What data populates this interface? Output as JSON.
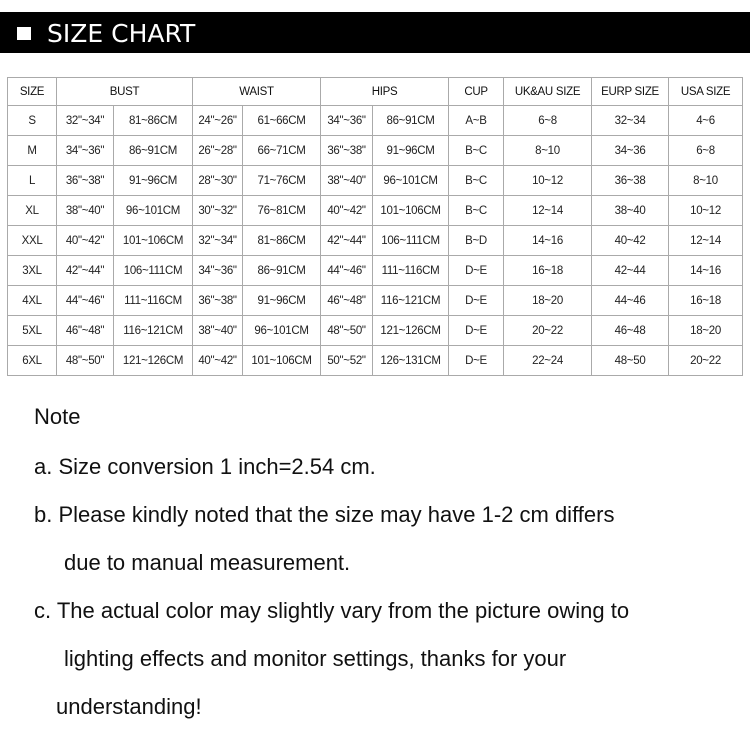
{
  "title": "SIZE CHART",
  "table": {
    "headers": [
      "SIZE",
      "BUST",
      "WAIST",
      "HIPS",
      "CUP",
      "UK&AU SIZE",
      "EURP SIZE",
      "USA SIZE"
    ],
    "rows": [
      [
        "S",
        "32\"~34\"",
        "81~86CM",
        "24\"~26\"",
        "61~66CM",
        "34\"~36\"",
        "86~91CM",
        "A~B",
        "6~8",
        "32~34",
        "4~6"
      ],
      [
        "M",
        "34\"~36\"",
        "86~91CM",
        "26\"~28\"",
        "66~71CM",
        "36\"~38\"",
        "91~96CM",
        "B~C",
        "8~10",
        "34~36",
        "6~8"
      ],
      [
        "L",
        "36\"~38\"",
        "91~96CM",
        "28\"~30\"",
        "71~76CM",
        "38\"~40\"",
        "96~101CM",
        "B~C",
        "10~12",
        "36~38",
        "8~10"
      ],
      [
        "XL",
        "38\"~40\"",
        "96~101CM",
        "30\"~32\"",
        "76~81CM",
        "40\"~42\"",
        "101~106CM",
        "B~C",
        "12~14",
        "38~40",
        "10~12"
      ],
      [
        "XXL",
        "40\"~42\"",
        "101~106CM",
        "32\"~34\"",
        "81~86CM",
        "42\"~44\"",
        "106~111CM",
        "B~D",
        "14~16",
        "40~42",
        "12~14"
      ],
      [
        "3XL",
        "42\"~44\"",
        "106~111CM",
        "34\"~36\"",
        "86~91CM",
        "44\"~46\"",
        "111~116CM",
        "D~E",
        "16~18",
        "42~44",
        "14~16"
      ],
      [
        "4XL",
        "44\"~46\"",
        "111~116CM",
        "36\"~38\"",
        "91~96CM",
        "46\"~48\"",
        "116~121CM",
        "D~E",
        "18~20",
        "44~46",
        "16~18"
      ],
      [
        "5XL",
        "46\"~48\"",
        "116~121CM",
        "38\"~40\"",
        "96~101CM",
        "48\"~50\"",
        "121~126CM",
        "D~E",
        "20~22",
        "46~48",
        "18~20"
      ],
      [
        "6XL",
        "48\"~50\"",
        "121~126CM",
        "40\"~42\"",
        "101~106CM",
        "50\"~52\"",
        "126~131CM",
        "D~E",
        "22~24",
        "48~50",
        "20~22"
      ]
    ]
  },
  "notes": {
    "heading": "Note",
    "lines": [
      "a. Size conversion 1 inch=2.54 cm.",
      "b. Please kindly noted that the size may have 1-2 cm differs",
      "due to manual measurement.",
      "c. The actual color may slightly vary from the picture owing to",
      "lighting effects and monitor settings, thanks for your",
      "understanding!"
    ]
  }
}
